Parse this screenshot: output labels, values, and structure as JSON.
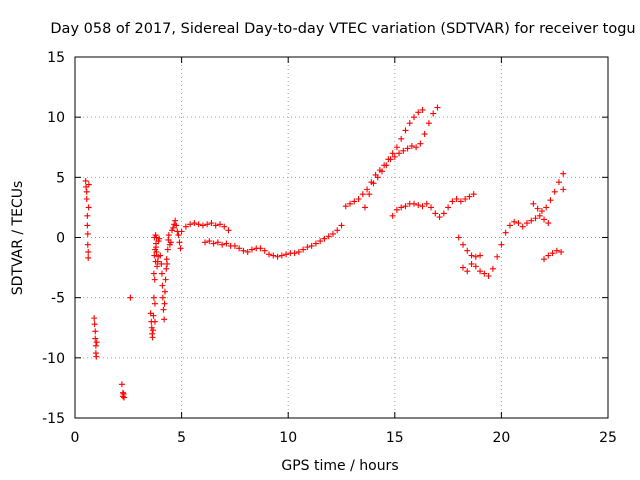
{
  "chart_data": {
    "type": "scatter",
    "title": "Day 058 of 2017, Sidereal Day-to-day VTEC variation (SDTVAR) for receiver togu",
    "xlabel": "GPS time / hours",
    "ylabel": "SDTVAR / TECUs",
    "xlim": [
      0,
      25
    ],
    "ylim": [
      -15,
      15
    ],
    "xticks": [
      0,
      5,
      10,
      15,
      20,
      25
    ],
    "yticks": [
      -15,
      -10,
      -5,
      0,
      5,
      10,
      15
    ],
    "grid": true,
    "marker": "+",
    "color": "#ff0000",
    "series": [
      {
        "x": [
          0.5,
          0.52,
          0.55,
          0.55,
          0.58,
          0.58,
          0.6,
          0.6,
          0.62,
          0.62,
          0.64,
          0.65,
          0.9,
          0.92,
          0.95,
          0.95,
          0.98,
          0.98,
          1.0,
          1.02,
          2.2,
          2.25,
          2.25,
          2.28,
          2.3,
          2.6,
          3.55,
          3.58,
          3.6,
          3.62,
          3.64,
          3.66,
          3.68,
          3.7,
          3.7,
          3.72,
          3.72,
          3.74,
          3.75,
          3.75,
          3.76,
          3.78,
          3.78,
          3.8,
          3.8,
          3.82,
          3.82,
          3.85,
          3.88,
          3.9,
          3.92,
          3.95,
          4.0,
          4.05,
          4.08,
          4.1,
          4.12,
          4.15,
          4.18,
          4.2,
          4.22,
          4.25,
          4.28,
          4.3,
          4.32,
          4.35,
          4.38,
          4.4,
          4.45,
          4.5,
          4.55,
          4.6,
          4.65,
          4.7,
          4.75,
          4.8,
          4.85,
          4.9,
          4.95
        ],
        "y": [
          4.7,
          4.2,
          3.8,
          3.2,
          1.8,
          1.0,
          0.3,
          -0.6,
          -1.2,
          -1.7,
          2.5,
          4.4,
          -6.7,
          -7.2,
          -7.8,
          -8.4,
          -9.0,
          -9.6,
          -9.9,
          -8.7,
          -12.2,
          -12.9,
          -13.2,
          -13.0,
          -13.3,
          -5.0,
          -6.3,
          -7.0,
          -7.5,
          -8.0,
          -8.3,
          -7.7,
          -6.5,
          -5.0,
          -3.0,
          -1.5,
          0.0,
          -3.5,
          -5.5,
          -7.0,
          -1.0,
          0.2,
          -2.0,
          -0.5,
          -0.8,
          0.0,
          -1.2,
          -2.4,
          -2.0,
          -1.6,
          -0.3,
          -0.1,
          -1.5,
          -2.2,
          -3.0,
          -4.0,
          -5.0,
          -6.0,
          -6.8,
          -5.5,
          -4.5,
          -3.5,
          -2.6,
          -1.8,
          -2.2,
          -1.0,
          -0.2,
          0.2,
          -0.6,
          -0.4,
          0.6,
          0.8,
          1.1,
          1.4,
          1.0,
          0.5,
          0.2,
          -0.4,
          -0.9
        ]
      },
      {
        "x": [
          5.0,
          5.2,
          5.4,
          5.6,
          5.8,
          6.0,
          6.2,
          6.4,
          6.6,
          6.8,
          7.0,
          7.2,
          6.1,
          6.3,
          6.5,
          6.7,
          6.9,
          7.1,
          7.3,
          7.5,
          7.7,
          7.9,
          8.1,
          8.3,
          8.5,
          8.7,
          8.9,
          9.1,
          9.3,
          9.5,
          9.7,
          9.9,
          10.1,
          10.3,
          10.5,
          10.7,
          10.9,
          11.1,
          11.3,
          11.5,
          11.7,
          11.9,
          12.1,
          12.3,
          12.5
        ],
        "y": [
          0.5,
          0.9,
          1.1,
          1.2,
          1.1,
          1.0,
          1.1,
          1.2,
          1.0,
          1.1,
          0.9,
          0.6,
          -0.4,
          -0.3,
          -0.5,
          -0.4,
          -0.6,
          -0.5,
          -0.7,
          -0.7,
          -0.9,
          -1.1,
          -1.2,
          -1.0,
          -0.9,
          -0.9,
          -1.1,
          -1.4,
          -1.5,
          -1.6,
          -1.5,
          -1.4,
          -1.3,
          -1.3,
          -1.2,
          -1.0,
          -0.8,
          -0.7,
          -0.5,
          -0.3,
          -0.1,
          0.1,
          0.3,
          0.6,
          1.0
        ]
      },
      {
        "x": [
          12.7,
          12.9,
          13.1,
          13.3,
          13.5,
          13.7,
          13.9,
          14.1,
          14.3,
          14.5,
          14.7,
          14.9,
          15.1,
          15.3,
          15.5,
          15.7,
          15.9,
          16.1,
          16.3,
          13.6,
          13.8,
          14.0,
          14.2,
          14.4,
          14.6,
          14.8,
          15.0,
          15.2,
          15.4,
          15.6,
          15.8,
          16.0,
          16.2,
          16.4,
          16.6,
          16.8,
          17.0
        ],
        "y": [
          2.6,
          2.8,
          3.0,
          3.2,
          3.6,
          4.0,
          4.6,
          5.2,
          5.6,
          6.0,
          6.5,
          7.0,
          7.5,
          8.2,
          8.9,
          9.5,
          10.0,
          10.4,
          10.6,
          2.5,
          3.6,
          4.5,
          5.0,
          5.5,
          6.0,
          6.5,
          6.7,
          7.0,
          7.2,
          7.4,
          7.6,
          7.5,
          7.8,
          8.6,
          9.5,
          10.3,
          10.8
        ]
      },
      {
        "x": [
          14.9,
          15.1,
          15.3,
          15.5,
          15.7,
          15.9,
          16.1,
          16.3,
          16.5,
          16.7,
          16.9,
          17.1,
          17.3,
          17.5,
          17.7,
          17.9,
          18.1,
          18.3,
          18.5,
          18.7
        ],
        "y": [
          1.8,
          2.3,
          2.5,
          2.6,
          2.8,
          2.8,
          2.7,
          2.6,
          2.8,
          2.5,
          2.0,
          1.7,
          2.0,
          2.5,
          3.0,
          3.2,
          3.0,
          3.2,
          3.4,
          3.6
        ]
      },
      {
        "x": [
          18.0,
          18.2,
          18.4,
          18.6,
          18.8,
          19.0,
          18.2,
          18.4,
          18.6,
          18.8,
          19.0,
          19.2,
          19.4,
          19.6,
          19.8,
          20.0,
          20.2,
          20.4,
          20.6,
          20.8,
          21.0,
          21.2,
          21.4,
          21.6,
          21.8,
          22.0,
          22.2
        ],
        "y": [
          0.0,
          -0.6,
          -1.1,
          -1.5,
          -1.6,
          -1.5,
          -2.5,
          -2.8,
          -2.2,
          -2.4,
          -2.8,
          -3.0,
          -3.2,
          -2.6,
          -1.6,
          -0.6,
          0.4,
          1.0,
          1.3,
          1.2,
          0.9,
          1.2,
          1.4,
          1.6,
          1.8,
          1.5,
          1.2
        ]
      },
      {
        "x": [
          21.5,
          21.7,
          21.9,
          22.1,
          22.3,
          22.5,
          22.7,
          22.9,
          22.0,
          22.2,
          22.4,
          22.6,
          22.8,
          22.9
        ],
        "y": [
          2.8,
          2.4,
          2.2,
          2.5,
          3.1,
          3.8,
          4.6,
          5.3,
          -1.8,
          -1.5,
          -1.3,
          -1.1,
          -1.2,
          4.0
        ]
      }
    ]
  }
}
